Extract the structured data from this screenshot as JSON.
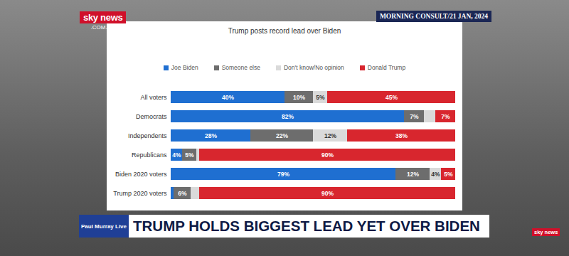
{
  "chart_data": {
    "type": "bar",
    "orientation": "horizontal",
    "stacked": true,
    "data_labels": true,
    "tick_labels": "y",
    "legend": "top",
    "title": "Trump posts record lead over Biden",
    "annotations": [
      "sky news",
      ".COM.AU",
      "MORNING CONSULT/21 JAN, 2024",
      "Paul Murray Live",
      "TRUMP HOLDS BIGGEST LEAD YET OVER BIDEN",
      "sky news"
    ],
    "categories": [
      "All voters",
      "Democrats",
      "Independents",
      "Republicans",
      "Biden 2020 voters",
      "Trump 2020 voters"
    ],
    "xlim": [
      0,
      100
    ],
    "series": [
      {
        "name": "Joe Biden",
        "color": "#1f6fd1",
        "values": [
          40,
          82,
          28,
          4,
          79,
          1
        ],
        "value_labels": [
          "40%",
          "82%",
          "28%",
          "4%",
          "79%",
          null
        ]
      },
      {
        "name": "Someone else",
        "color": "#6d6d6d",
        "values": [
          10,
          7,
          22,
          5,
          12,
          6
        ],
        "value_labels": [
          "10%",
          "7%",
          "22%",
          "5%",
          "12%",
          "6%"
        ]
      },
      {
        "name": "Don't know/No opinion",
        "color": "#dadada",
        "values": [
          5,
          4,
          12,
          1,
          4,
          3
        ],
        "value_labels": [
          "5%",
          null,
          "12%",
          null,
          "4%",
          null
        ]
      },
      {
        "name": "Donald Trump",
        "color": "#d8262e",
        "values": [
          45,
          7,
          38,
          90,
          5,
          90
        ],
        "value_labels": [
          "45%",
          "7%",
          "38%",
          "90%",
          "5%",
          "90%"
        ]
      }
    ]
  }
}
